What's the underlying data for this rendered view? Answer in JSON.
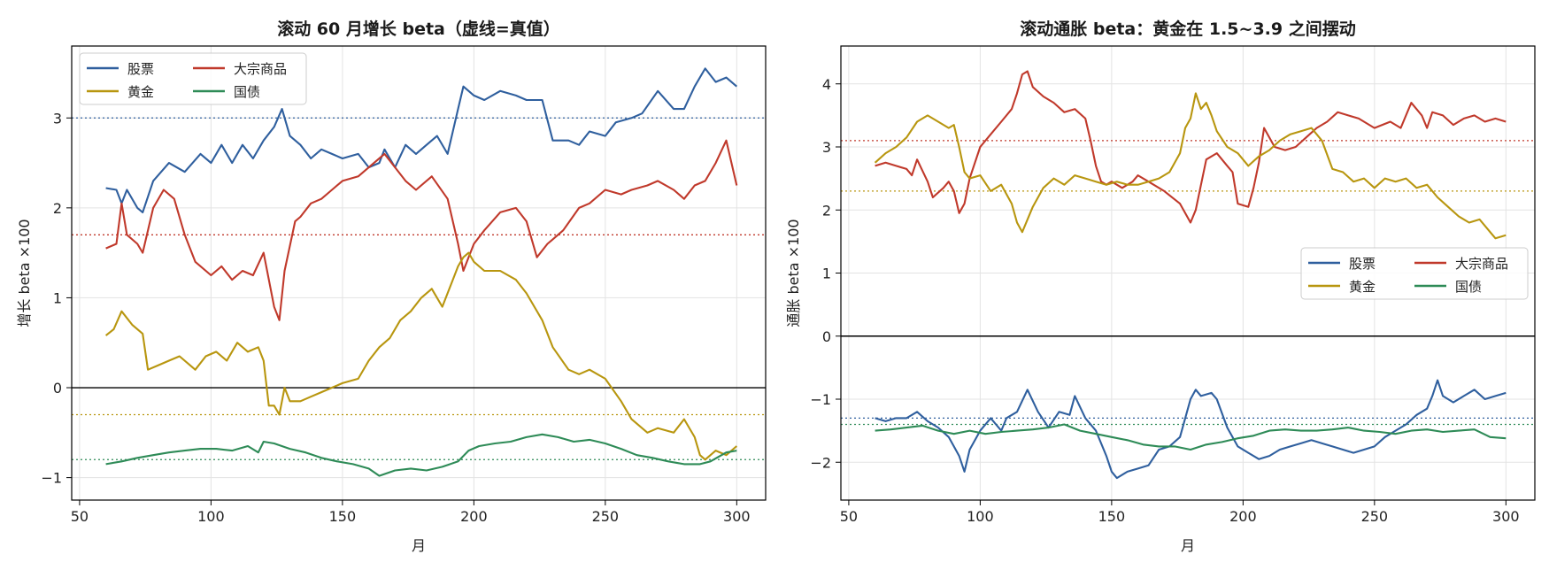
{
  "chart_data": [
    {
      "type": "line",
      "title": "滚动 60 月增长 beta（虚线=真值）",
      "xlabel": "月",
      "ylabel": "增长 beta ×100",
      "xlim": [
        47,
        311
      ],
      "ylim": [
        -1.25,
        3.8
      ],
      "xticks": [
        50,
        100,
        150,
        200,
        250,
        300
      ],
      "yticks": [
        -1,
        0,
        1,
        2,
        3
      ],
      "ytick_labels": [
        "−1",
        "0",
        "1",
        "2",
        "3"
      ],
      "grid": true,
      "legend_location": "upper-left",
      "legend_columns": 2,
      "zero_line": 0,
      "series": [
        {
          "name": "股票",
          "color": "#2f5f9e",
          "true_value": 3.0,
          "x": [
            60,
            64,
            66,
            68,
            72,
            74,
            78,
            84,
            90,
            96,
            100,
            104,
            108,
            112,
            116,
            120,
            124,
            127,
            130,
            134,
            138,
            142,
            146,
            150,
            156,
            160,
            164,
            166,
            170,
            174,
            178,
            182,
            186,
            190,
            194,
            196,
            200,
            204,
            210,
            216,
            220,
            226,
            230,
            236,
            240,
            244,
            250,
            254,
            260,
            264,
            270,
            276,
            280,
            284,
            288,
            292,
            296,
            300
          ],
          "y": [
            2.22,
            2.2,
            2.05,
            2.2,
            2.0,
            1.95,
            2.3,
            2.5,
            2.4,
            2.6,
            2.5,
            2.7,
            2.5,
            2.7,
            2.55,
            2.75,
            2.9,
            3.1,
            2.8,
            2.7,
            2.55,
            2.65,
            2.6,
            2.55,
            2.6,
            2.45,
            2.5,
            2.65,
            2.45,
            2.7,
            2.6,
            2.7,
            2.8,
            2.6,
            3.1,
            3.35,
            3.25,
            3.2,
            3.3,
            3.25,
            3.2,
            3.2,
            2.75,
            2.75,
            2.7,
            2.85,
            2.8,
            2.95,
            3.0,
            3.05,
            3.3,
            3.1,
            3.1,
            3.35,
            3.55,
            3.4,
            3.45,
            3.35
          ]
        },
        {
          "name": "大宗商品",
          "color": "#c0392b",
          "true_value": 1.7,
          "x": [
            60,
            64,
            66,
            68,
            72,
            74,
            78,
            82,
            86,
            90,
            94,
            100,
            104,
            108,
            112,
            116,
            120,
            124,
            126,
            128,
            132,
            134,
            138,
            142,
            146,
            150,
            156,
            162,
            166,
            170,
            174,
            178,
            184,
            190,
            194,
            196,
            198,
            200,
            204,
            210,
            216,
            220,
            224,
            228,
            230,
            234,
            240,
            244,
            250,
            256,
            260,
            266,
            270,
            276,
            280,
            284,
            288,
            292,
            296,
            300
          ],
          "y": [
            1.55,
            1.6,
            2.05,
            1.7,
            1.6,
            1.5,
            2.0,
            2.2,
            2.1,
            1.7,
            1.4,
            1.25,
            1.35,
            1.2,
            1.3,
            1.25,
            1.5,
            0.9,
            0.75,
            1.3,
            1.85,
            1.9,
            2.05,
            2.1,
            2.2,
            2.3,
            2.35,
            2.5,
            2.6,
            2.45,
            2.3,
            2.2,
            2.35,
            2.1,
            1.6,
            1.3,
            1.45,
            1.6,
            1.75,
            1.95,
            2.0,
            1.85,
            1.45,
            1.6,
            1.65,
            1.75,
            2.0,
            2.05,
            2.2,
            2.15,
            2.2,
            2.25,
            2.3,
            2.2,
            2.1,
            2.25,
            2.3,
            2.5,
            2.75,
            2.25
          ]
        },
        {
          "name": "黄金",
          "color": "#b8960f",
          "true_value": -0.3,
          "x": [
            60,
            63,
            66,
            70,
            74,
            76,
            80,
            84,
            88,
            92,
            94,
            98,
            102,
            106,
            110,
            114,
            118,
            120,
            122,
            124,
            126,
            128,
            130,
            134,
            138,
            142,
            146,
            150,
            156,
            160,
            164,
            168,
            172,
            176,
            180,
            184,
            188,
            192,
            194,
            196,
            198,
            200,
            204,
            210,
            216,
            220,
            226,
            230,
            236,
            240,
            244,
            250,
            256,
            260,
            266,
            270,
            276,
            280,
            284,
            286,
            288,
            292,
            296,
            300
          ],
          "y": [
            0.58,
            0.65,
            0.85,
            0.7,
            0.6,
            0.2,
            0.25,
            0.3,
            0.35,
            0.25,
            0.2,
            0.35,
            0.4,
            0.3,
            0.5,
            0.4,
            0.45,
            0.3,
            -0.2,
            -0.2,
            -0.3,
            0.0,
            -0.15,
            -0.15,
            -0.1,
            -0.05,
            0.0,
            0.05,
            0.1,
            0.3,
            0.45,
            0.55,
            0.75,
            0.85,
            1.0,
            1.1,
            0.9,
            1.2,
            1.35,
            1.45,
            1.5,
            1.4,
            1.3,
            1.3,
            1.2,
            1.05,
            0.75,
            0.45,
            0.2,
            0.15,
            0.2,
            0.1,
            -0.15,
            -0.35,
            -0.5,
            -0.45,
            -0.5,
            -0.35,
            -0.55,
            -0.75,
            -0.8,
            -0.7,
            -0.75,
            -0.65
          ]
        },
        {
          "name": "国债",
          "color": "#2e8b57",
          "true_value": -0.8,
          "x": [
            60,
            66,
            72,
            78,
            84,
            90,
            96,
            102,
            108,
            114,
            118,
            120,
            124,
            130,
            136,
            142,
            148,
            154,
            160,
            164,
            170,
            176,
            182,
            188,
            194,
            198,
            202,
            208,
            214,
            220,
            226,
            232,
            238,
            244,
            250,
            256,
            262,
            268,
            274,
            280,
            286,
            290,
            296,
            300
          ],
          "y": [
            -0.85,
            -0.82,
            -0.78,
            -0.75,
            -0.72,
            -0.7,
            -0.68,
            -0.68,
            -0.7,
            -0.65,
            -0.72,
            -0.6,
            -0.62,
            -0.68,
            -0.72,
            -0.78,
            -0.82,
            -0.85,
            -0.9,
            -0.98,
            -0.92,
            -0.9,
            -0.92,
            -0.88,
            -0.82,
            -0.7,
            -0.65,
            -0.62,
            -0.6,
            -0.55,
            -0.52,
            -0.55,
            -0.6,
            -0.58,
            -0.62,
            -0.68,
            -0.75,
            -0.78,
            -0.82,
            -0.85,
            -0.85,
            -0.82,
            -0.72,
            -0.7
          ]
        }
      ]
    },
    {
      "type": "line",
      "title": "滚动通胀 beta：黄金在 1.5~3.9 之间摆动",
      "xlabel": "月",
      "ylabel": "通胀 beta ×100",
      "xlim": [
        47,
        311
      ],
      "ylim": [
        -2.6,
        4.6
      ],
      "xticks": [
        50,
        100,
        150,
        200,
        250,
        300
      ],
      "yticks": [
        -2,
        -1,
        0,
        1,
        2,
        3,
        4
      ],
      "ytick_labels": [
        "−2",
        "−1",
        "0",
        "1",
        "2",
        "3",
        "4"
      ],
      "grid": true,
      "legend_location": "center-right",
      "legend_columns": 2,
      "zero_line": 0,
      "series": [
        {
          "name": "股票",
          "color": "#2f5f9e",
          "true_value": -1.3,
          "x": [
            60,
            64,
            68,
            72,
            76,
            80,
            84,
            88,
            90,
            92,
            94,
            96,
            100,
            104,
            106,
            108,
            110,
            114,
            118,
            122,
            126,
            130,
            134,
            136,
            140,
            144,
            148,
            150,
            152,
            156,
            160,
            164,
            168,
            172,
            176,
            180,
            182,
            184,
            188,
            190,
            194,
            198,
            202,
            206,
            210,
            214,
            218,
            222,
            226,
            230,
            234,
            238,
            242,
            246,
            250,
            254,
            258,
            262,
            266,
            270,
            272,
            274,
            276,
            280,
            284,
            288,
            292,
            296,
            300
          ],
          "y": [
            -1.3,
            -1.35,
            -1.3,
            -1.3,
            -1.2,
            -1.35,
            -1.45,
            -1.6,
            -1.75,
            -1.9,
            -2.15,
            -1.8,
            -1.5,
            -1.3,
            -1.4,
            -1.5,
            -1.3,
            -1.2,
            -0.85,
            -1.2,
            -1.45,
            -1.2,
            -1.25,
            -0.95,
            -1.3,
            -1.5,
            -1.9,
            -2.15,
            -2.25,
            -2.15,
            -2.1,
            -2.05,
            -1.8,
            -1.75,
            -1.6,
            -1.0,
            -0.85,
            -0.95,
            -0.9,
            -1.0,
            -1.45,
            -1.75,
            -1.85,
            -1.95,
            -1.9,
            -1.8,
            -1.75,
            -1.7,
            -1.65,
            -1.7,
            -1.75,
            -1.8,
            -1.85,
            -1.8,
            -1.75,
            -1.6,
            -1.5,
            -1.4,
            -1.25,
            -1.15,
            -0.95,
            -0.7,
            -0.95,
            -1.05,
            -0.95,
            -0.85,
            -1.0,
            -0.95,
            -0.9
          ]
        },
        {
          "name": "大宗商品",
          "color": "#c0392b",
          "true_value": 3.1,
          "x": [
            60,
            64,
            68,
            72,
            74,
            76,
            80,
            82,
            86,
            88,
            90,
            92,
            94,
            96,
            100,
            104,
            108,
            112,
            114,
            116,
            118,
            120,
            124,
            128,
            132,
            136,
            140,
            142,
            144,
            146,
            148,
            150,
            154,
            158,
            160,
            164,
            170,
            176,
            180,
            182,
            186,
            190,
            194,
            196,
            198,
            202,
            204,
            206,
            208,
            212,
            216,
            220,
            224,
            228,
            232,
            236,
            240,
            244,
            250,
            256,
            260,
            264,
            268,
            270,
            272,
            276,
            280,
            284,
            288,
            292,
            296,
            300
          ],
          "y": [
            2.7,
            2.75,
            2.7,
            2.65,
            2.55,
            2.8,
            2.45,
            2.2,
            2.35,
            2.45,
            2.3,
            1.95,
            2.1,
            2.5,
            3.0,
            3.2,
            3.4,
            3.6,
            3.85,
            4.15,
            4.2,
            3.95,
            3.8,
            3.7,
            3.55,
            3.6,
            3.45,
            3.1,
            2.7,
            2.45,
            2.4,
            2.45,
            2.35,
            2.45,
            2.55,
            2.45,
            2.3,
            2.1,
            1.8,
            2.0,
            2.8,
            2.9,
            2.7,
            2.6,
            2.1,
            2.05,
            2.35,
            2.75,
            3.3,
            3.0,
            2.95,
            3.0,
            3.15,
            3.3,
            3.4,
            3.55,
            3.5,
            3.45,
            3.3,
            3.4,
            3.3,
            3.7,
            3.5,
            3.3,
            3.55,
            3.5,
            3.35,
            3.45,
            3.5,
            3.4,
            3.45,
            3.4
          ]
        },
        {
          "name": "黄金",
          "color": "#b8960f",
          "true_value": 2.3,
          "x": [
            60,
            64,
            68,
            72,
            76,
            80,
            84,
            88,
            90,
            92,
            94,
            96,
            100,
            104,
            108,
            112,
            114,
            116,
            120,
            124,
            128,
            132,
            136,
            140,
            144,
            148,
            152,
            156,
            160,
            164,
            168,
            172,
            176,
            178,
            180,
            182,
            184,
            186,
            188,
            190,
            194,
            198,
            202,
            206,
            210,
            214,
            218,
            222,
            226,
            230,
            234,
            238,
            242,
            246,
            250,
            254,
            258,
            262,
            266,
            270,
            274,
            278,
            282,
            286,
            290,
            294,
            296,
            300
          ],
          "y": [
            2.75,
            2.9,
            3.0,
            3.15,
            3.4,
            3.5,
            3.4,
            3.3,
            3.35,
            3.0,
            2.6,
            2.5,
            2.55,
            2.3,
            2.4,
            2.1,
            1.8,
            1.65,
            2.05,
            2.35,
            2.5,
            2.4,
            2.55,
            2.5,
            2.45,
            2.4,
            2.45,
            2.4,
            2.4,
            2.45,
            2.5,
            2.6,
            2.9,
            3.3,
            3.45,
            3.85,
            3.6,
            3.7,
            3.5,
            3.25,
            3.0,
            2.9,
            2.7,
            2.85,
            2.95,
            3.1,
            3.2,
            3.25,
            3.3,
            3.1,
            2.65,
            2.6,
            2.45,
            2.5,
            2.35,
            2.5,
            2.45,
            2.5,
            2.35,
            2.4,
            2.2,
            2.05,
            1.9,
            1.8,
            1.85,
            1.65,
            1.55,
            1.6
          ]
        },
        {
          "name": "国债",
          "color": "#2e8b57",
          "true_value": -1.4,
          "x": [
            60,
            66,
            72,
            78,
            84,
            90,
            96,
            102,
            108,
            114,
            120,
            126,
            132,
            138,
            144,
            150,
            156,
            162,
            168,
            174,
            180,
            186,
            192,
            198,
            204,
            210,
            216,
            222,
            228,
            234,
            240,
            246,
            252,
            258,
            264,
            270,
            276,
            282,
            288,
            294,
            300
          ],
          "y": [
            -1.5,
            -1.48,
            -1.45,
            -1.42,
            -1.5,
            -1.55,
            -1.5,
            -1.55,
            -1.52,
            -1.5,
            -1.48,
            -1.45,
            -1.4,
            -1.5,
            -1.55,
            -1.6,
            -1.65,
            -1.72,
            -1.75,
            -1.75,
            -1.8,
            -1.72,
            -1.68,
            -1.62,
            -1.58,
            -1.5,
            -1.48,
            -1.5,
            -1.5,
            -1.48,
            -1.45,
            -1.5,
            -1.52,
            -1.55,
            -1.5,
            -1.48,
            -1.52,
            -1.5,
            -1.48,
            -1.6,
            -1.62
          ]
        }
      ]
    }
  ]
}
